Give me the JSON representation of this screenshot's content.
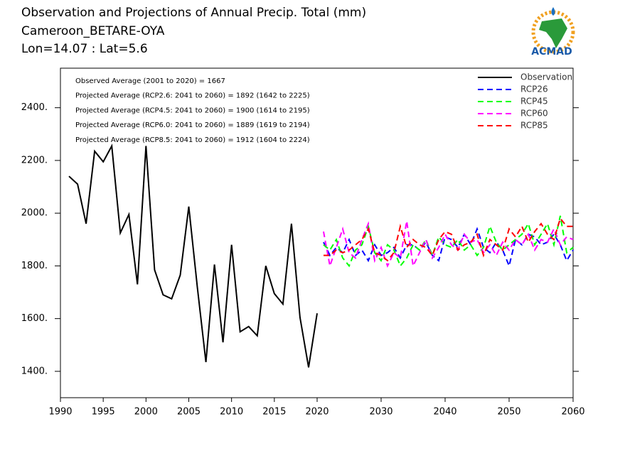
{
  "chart_data": {
    "type": "line",
    "title": [
      "Observation and Projections of Annual Precip. Total (mm)",
      "Cameroon_BETARE-OYA",
      "Lon=14.07 : Lat=5.6"
    ],
    "logo": "ACMAD",
    "annotations": [
      "Observed Average (2001 to 2020) = 1667",
      "Projected Average (RCP2.6: 2041 to 2060) = 1892 (1642 to 2225)",
      "Projected Average (RCP4.5: 2041 to 2060) = 1900 (1614 to 2195)",
      "Projected Average (RCP6.0: 2041 to 2060) = 1889 (1619 to 2194)",
      "Projected Average (RCP8.5: 2041 to 2060) = 1912 (1604 to 2224)"
    ],
    "xlim": [
      1990,
      2060
    ],
    "xticks": [
      1990,
      1995,
      2000,
      2005,
      2010,
      2015,
      2020,
      2030,
      2040,
      2050,
      2060
    ],
    "ylim": [
      1300,
      2550
    ],
    "yticks": [
      {
        "value": 1400,
        "label": "1400."
      },
      {
        "value": 1600,
        "label": "1600."
      },
      {
        "value": 1800,
        "label": "1800."
      },
      {
        "value": 2000,
        "label": "2000."
      },
      {
        "value": 2200,
        "label": "2200."
      },
      {
        "value": 2400,
        "label": "2400."
      }
    ],
    "legend": "top-right",
    "series": [
      {
        "name": "Observation",
        "color": "#000000",
        "dashed": false,
        "x": [
          1991,
          1992,
          1993,
          1994,
          1995,
          1996,
          1997,
          1998,
          1999,
          2000,
          2001,
          2002,
          2003,
          2004,
          2005,
          2006,
          2007,
          2008,
          2009,
          2010,
          2011,
          2012,
          2013,
          2014,
          2015,
          2016,
          2017,
          2018,
          2019,
          2020
        ],
        "values": [
          2140,
          2110,
          1960,
          2235,
          2195,
          2255,
          1925,
          1995,
          1730,
          2255,
          1785,
          1690,
          1675,
          1765,
          2025,
          1720,
          1435,
          1805,
          1510,
          1880,
          1550,
          1570,
          1535,
          1800,
          1695,
          1655,
          1960,
          1605,
          1415,
          1620
        ]
      },
      {
        "name": "RCP26",
        "color": "#0000ff",
        "dashed": true,
        "x": [
          2021,
          2022,
          2023,
          2024,
          2025,
          2026,
          2027,
          2028,
          2029,
          2030,
          2031,
          2032,
          2033,
          2034,
          2035,
          2036,
          2037,
          2038,
          2039,
          2040,
          2041,
          2042,
          2043,
          2044,
          2045,
          2046,
          2047,
          2048,
          2049,
          2050,
          2051,
          2052,
          2053,
          2054,
          2055,
          2056,
          2057,
          2058,
          2059,
          2060
        ],
        "values": [
          1890,
          1840,
          1870,
          1850,
          1900,
          1840,
          1860,
          1820,
          1880,
          1840,
          1850,
          1870,
          1830,
          1880,
          1880,
          1860,
          1890,
          1840,
          1820,
          1910,
          1900,
          1870,
          1920,
          1880,
          1940,
          1870,
          1850,
          1890,
          1860,
          1800,
          1900,
          1880,
          1920,
          1910,
          1880,
          1890,
          1920,
          1880,
          1820,
          1860
        ]
      },
      {
        "name": "RCP45",
        "color": "#00ff00",
        "dashed": true,
        "x": [
          2021,
          2022,
          2023,
          2024,
          2025,
          2026,
          2027,
          2028,
          2029,
          2030,
          2031,
          2032,
          2033,
          2034,
          2035,
          2036,
          2037,
          2038,
          2039,
          2040,
          2041,
          2042,
          2043,
          2044,
          2045,
          2046,
          2047,
          2048,
          2049,
          2050,
          2051,
          2052,
          2053,
          2054,
          2055,
          2056,
          2057,
          2058,
          2059,
          2060
        ],
        "values": [
          1880,
          1860,
          1900,
          1830,
          1800,
          1860,
          1880,
          1950,
          1850,
          1820,
          1880,
          1860,
          1800,
          1830,
          1880,
          1860,
          1900,
          1840,
          1910,
          1880,
          1870,
          1900,
          1860,
          1880,
          1840,
          1870,
          1950,
          1890,
          1860,
          1880,
          1900,
          1920,
          1960,
          1880,
          1920,
          1960,
          1880,
          1990,
          1850,
          1870
        ]
      },
      {
        "name": "RCP60",
        "color": "#ff00ff",
        "dashed": true,
        "x": [
          2021,
          2022,
          2023,
          2024,
          2025,
          2026,
          2027,
          2028,
          2029,
          2030,
          2031,
          2032,
          2033,
          2034,
          2035,
          2036,
          2037,
          2038,
          2039,
          2040,
          2041,
          2042,
          2043,
          2044,
          2045,
          2046,
          2047,
          2048,
          2049,
          2050,
          2051,
          2052,
          2053,
          2054,
          2055,
          2056,
          2057,
          2058,
          2059,
          2060
        ],
        "values": [
          1930,
          1800,
          1870,
          1940,
          1850,
          1830,
          1900,
          1960,
          1820,
          1870,
          1800,
          1850,
          1830,
          1970,
          1800,
          1850,
          1900,
          1830,
          1870,
          1920,
          1880,
          1860,
          1920,
          1890,
          1900,
          1850,
          1880,
          1840,
          1890,
          1860,
          1900,
          1880,
          1920,
          1860,
          1900,
          1890,
          1940,
          1880,
          1910,
          1900
        ]
      },
      {
        "name": "RCP85",
        "color": "#ff0000",
        "dashed": true,
        "x": [
          2021,
          2022,
          2023,
          2024,
          2025,
          2026,
          2027,
          2028,
          2029,
          2030,
          2031,
          2032,
          2033,
          2034,
          2035,
          2036,
          2037,
          2038,
          2039,
          2040,
          2041,
          2042,
          2043,
          2044,
          2045,
          2046,
          2047,
          2048,
          2049,
          2050,
          2051,
          2052,
          2053,
          2054,
          2055,
          2056,
          2057,
          2058,
          2059,
          2060
        ],
        "values": [
          1840,
          1840,
          1860,
          1850,
          1860,
          1880,
          1900,
          1940,
          1850,
          1840,
          1820,
          1850,
          1950,
          1870,
          1900,
          1880,
          1870,
          1840,
          1900,
          1930,
          1920,
          1860,
          1880,
          1890,
          1920,
          1840,
          1900,
          1880,
          1860,
          1940,
          1910,
          1950,
          1890,
          1930,
          1960,
          1920,
          1900,
          1980,
          1950,
          1950
        ]
      }
    ]
  }
}
